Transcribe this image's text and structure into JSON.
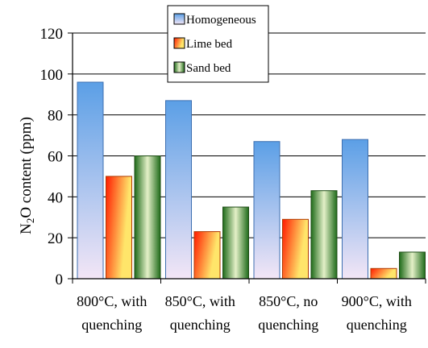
{
  "chart_data": {
    "type": "bar",
    "title": "",
    "xlabel": "",
    "ylabel": "N₂O content (ppm)",
    "ylim": [
      0,
      120
    ],
    "yticks": [
      0,
      20,
      40,
      60,
      80,
      100,
      120
    ],
    "categories": [
      [
        "800°C, with",
        "quenching"
      ],
      [
        "850°C, with",
        "quenching"
      ],
      [
        "850°C, no",
        "quenching"
      ],
      [
        "900°C, with",
        "quenching"
      ]
    ],
    "series": [
      {
        "name": "Homogeneous",
        "values": [
          96,
          87,
          67,
          68
        ],
        "colors": [
          "#f3e6f6",
          "#5b9fe6"
        ]
      },
      {
        "name": "Lime bed",
        "values": [
          50,
          23,
          29,
          5
        ],
        "colors": [
          "#ff1a00",
          "#ffe56a"
        ]
      },
      {
        "name": "Sand bed",
        "values": [
          60,
          35,
          43,
          13
        ],
        "colors": [
          "#1f6b1a",
          "#e4f0c8"
        ]
      }
    ],
    "legend": "top-center",
    "grid": true
  }
}
